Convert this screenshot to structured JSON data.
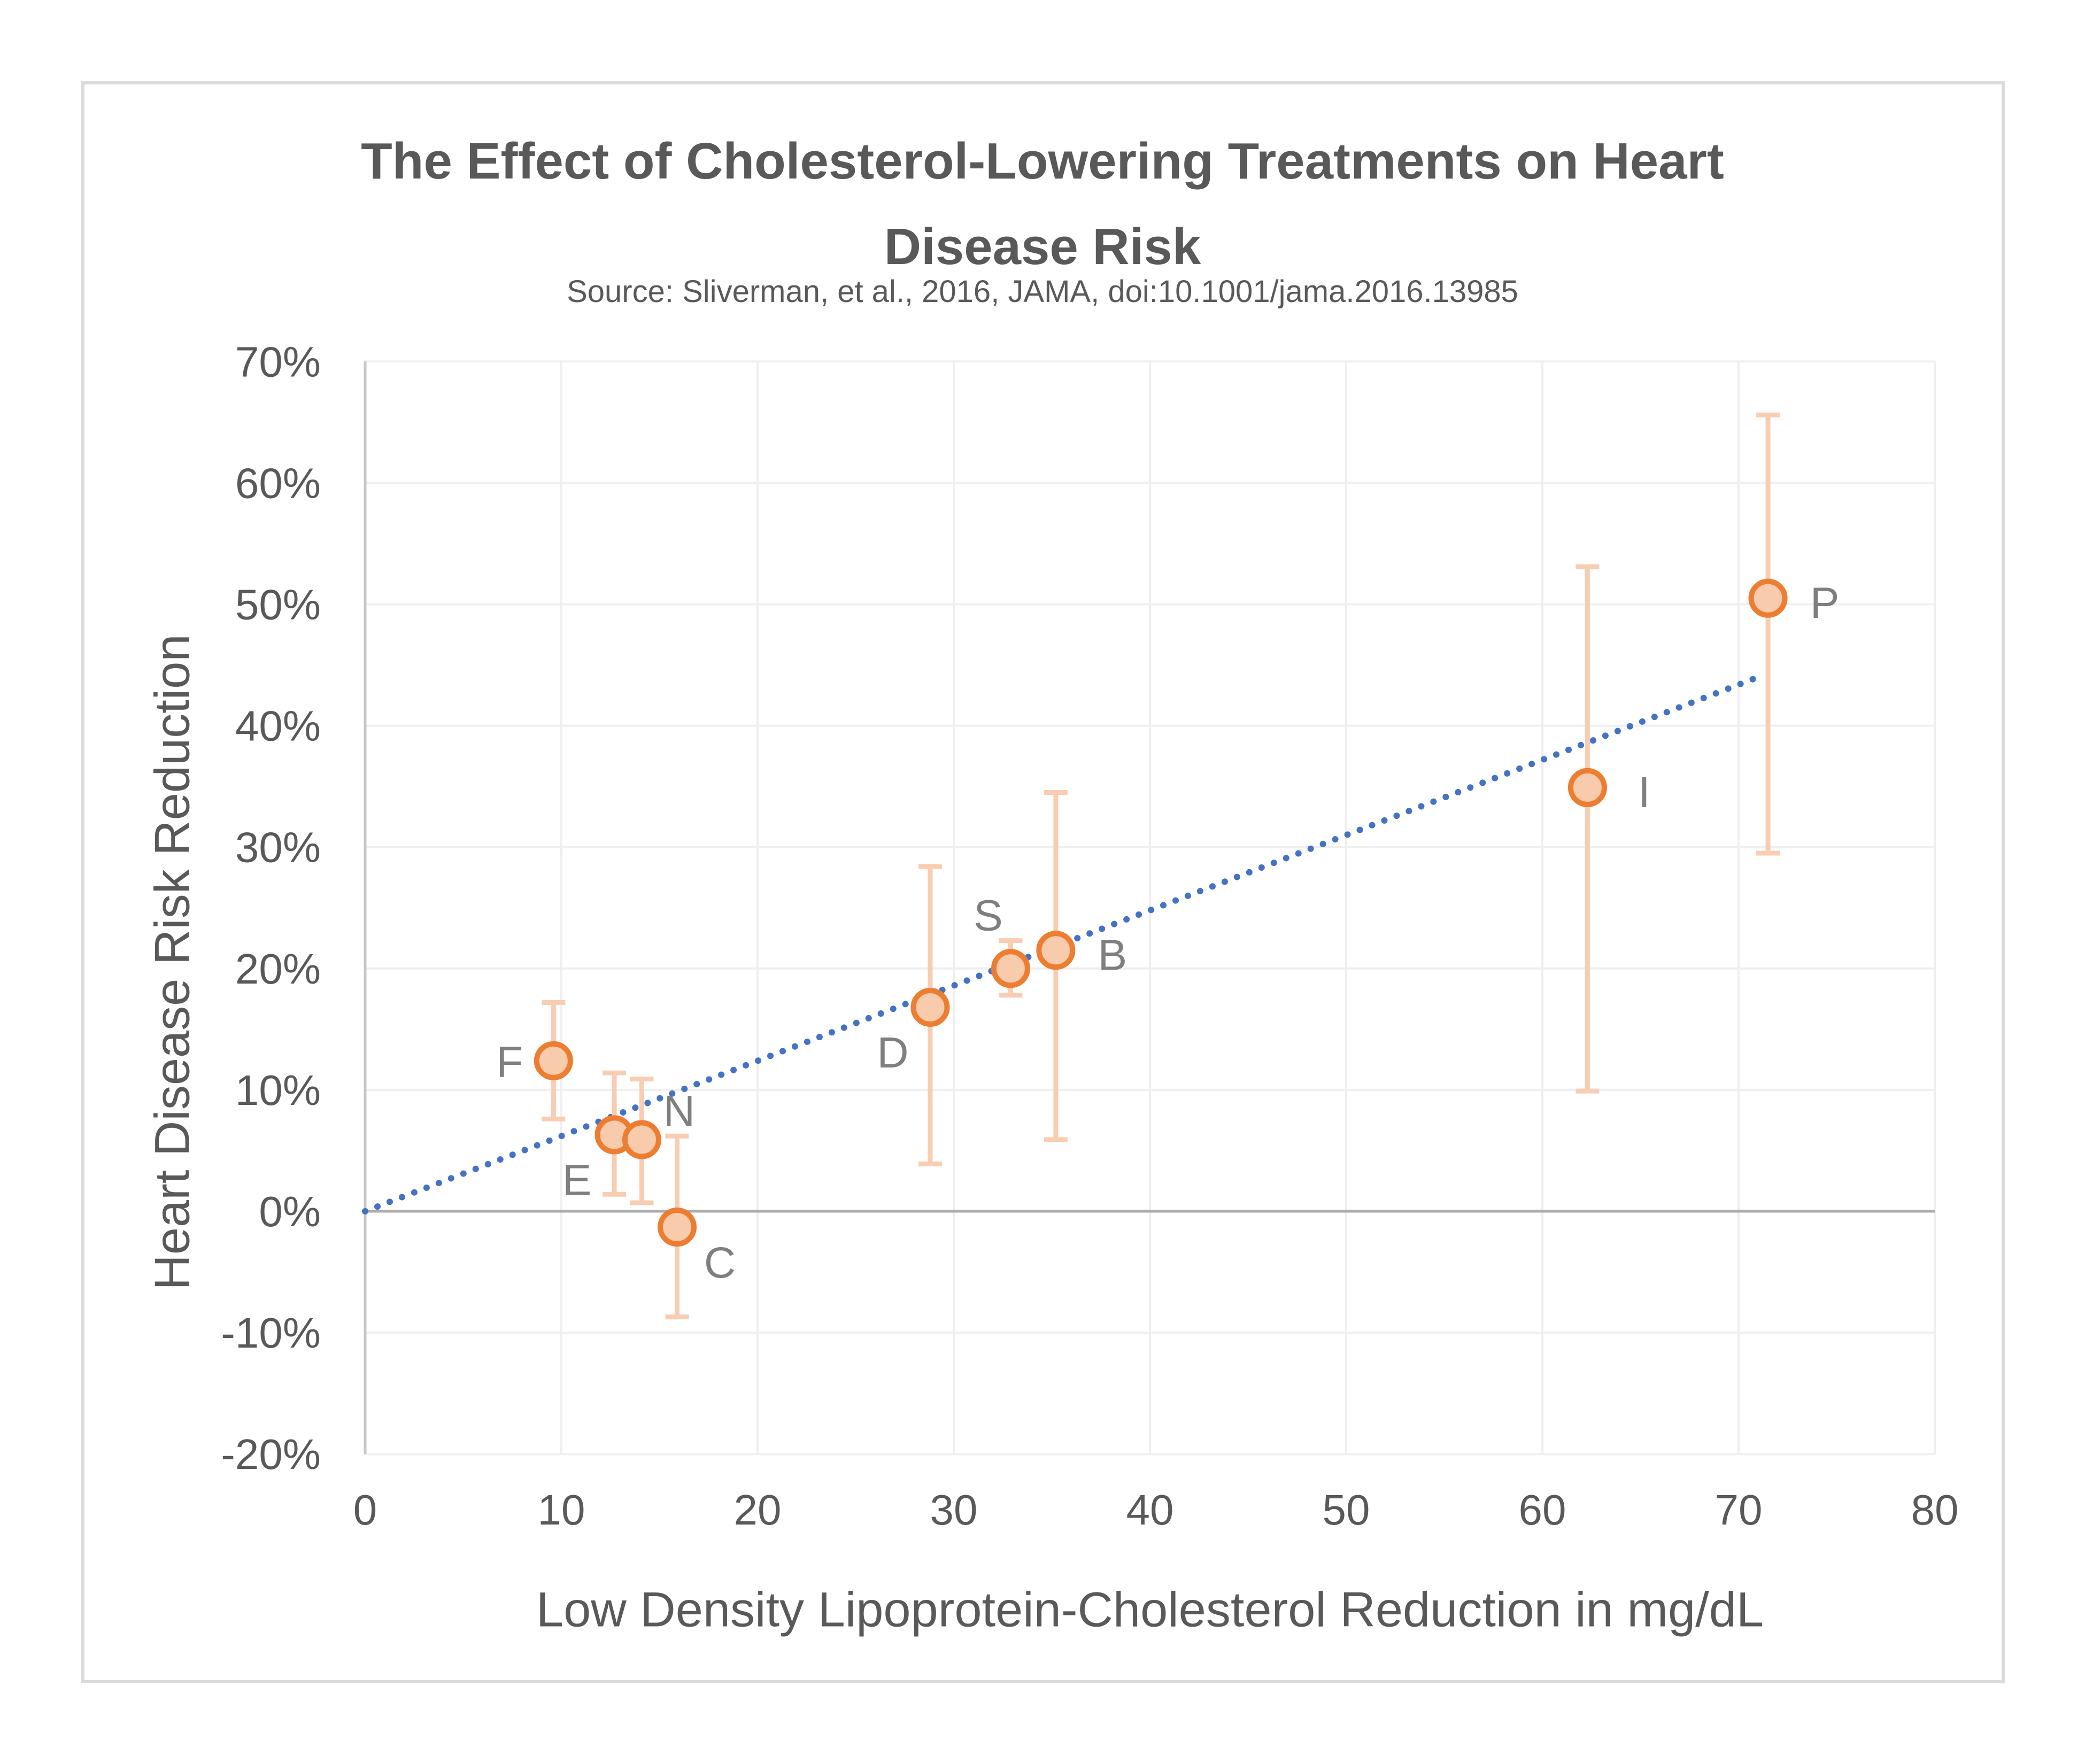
{
  "chart_data": {
    "type": "scatter",
    "title": "The Effect of Cholesterol-Lowering Treatments on Heart Disease Risk",
    "title_lines": [
      "The Effect of Cholesterol-Lowering Treatments on Heart",
      "Disease Risk"
    ],
    "source": "Source: Sliverman, et al., 2016, JAMA, doi:10.1001/jama.2016.13985",
    "xlabel": "Low Density Lipoprotein-Cholesterol Reduction in mg/dL",
    "ylabel": "Heart Disease Risk Reduction",
    "xlim": [
      0,
      80
    ],
    "ylim": [
      -20,
      70
    ],
    "grid": true,
    "legend": "none",
    "x_ticks": [
      {
        "v": 0,
        "label": "0"
      },
      {
        "v": 10,
        "label": "10"
      },
      {
        "v": 20,
        "label": "20"
      },
      {
        "v": 30,
        "label": "30"
      },
      {
        "v": 40,
        "label": "40"
      },
      {
        "v": 50,
        "label": "50"
      },
      {
        "v": 60,
        "label": "60"
      },
      {
        "v": 70,
        "label": "70"
      },
      {
        "v": 80,
        "label": "80"
      }
    ],
    "y_ticks": [
      {
        "v": 70,
        "label": "70%"
      },
      {
        "v": 60,
        "label": "60%"
      },
      {
        "v": 50,
        "label": "50%"
      },
      {
        "v": 40,
        "label": "40%"
      },
      {
        "v": 30,
        "label": "30%"
      },
      {
        "v": 20,
        "label": "20%"
      },
      {
        "v": 10,
        "label": "10%"
      },
      {
        "v": 0,
        "label": "0%"
      },
      {
        "v": -10,
        "label": "-10%"
      },
      {
        "v": -20,
        "label": "-20%"
      }
    ],
    "series": [
      {
        "name": "treatments",
        "points": [
          {
            "label": "F",
            "x": 9.6,
            "y": 12.4,
            "ci_low": 7.6,
            "ci_high": 17.2,
            "label_pos": "left"
          },
          {
            "label": "E",
            "x": 12.7,
            "y": 6.3,
            "ci_low": 1.4,
            "ci_high": 11.4,
            "label_pos": "below-left"
          },
          {
            "label": "N",
            "x": 14.1,
            "y": 5.9,
            "ci_low": 0.7,
            "ci_high": 10.9,
            "label_pos": "above-right"
          },
          {
            "label": "C",
            "x": 15.9,
            "y": -1.3,
            "ci_low": -8.7,
            "ci_high": 6.2,
            "label_pos": "below-right"
          },
          {
            "label": "D",
            "x": 28.8,
            "y": 16.8,
            "ci_low": 3.9,
            "ci_high": 28.4,
            "label_pos": "below-left"
          },
          {
            "label": "S",
            "x": 32.9,
            "y": 20.0,
            "ci_low": 17.8,
            "ci_high": 22.3,
            "label_pos": "above-left"
          },
          {
            "label": "B",
            "x": 35.2,
            "y": 21.5,
            "ci_low": 5.9,
            "ci_high": 34.5,
            "label_pos": "right"
          },
          {
            "label": "I",
            "x": 62.3,
            "y": 34.9,
            "ci_low": 9.9,
            "ci_high": 53.1,
            "label_pos": "right"
          },
          {
            "label": "P",
            "x": 71.5,
            "y": 50.5,
            "ci_low": 29.5,
            "ci_high": 65.6,
            "label_pos": "right"
          }
        ]
      }
    ],
    "trendline": {
      "style": "dotted",
      "from": {
        "x": 0,
        "y": 0
      },
      "to": {
        "x": 71,
        "y": 44
      }
    }
  },
  "colors": {
    "title_text": "#595959",
    "tick_text": "#595959",
    "axis_title_text": "#595959",
    "point_label_text": "#7F7F7F",
    "marker_fill": "#F8CBAD",
    "marker_stroke": "#ED7D31",
    "error_bar": "#F8CDB2",
    "trendline": "#4472C4",
    "gridline": "#EFEFEF",
    "axis_line": "#C6C6C6",
    "zero_line": "#ACACAC",
    "frame_border": "#DBDBDB"
  }
}
